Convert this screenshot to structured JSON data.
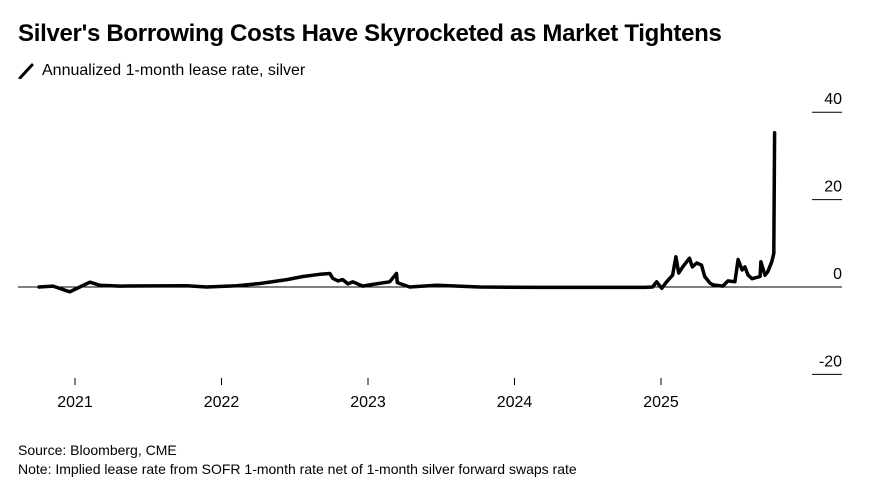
{
  "chart_data": {
    "type": "line",
    "title": "Silver's Borrowing Costs Have Skyrocketed as Market Tightens",
    "series": [
      {
        "name": "Annualized 1-month lease rate, silver",
        "color": "#000000",
        "points": [
          [
            "2020-10-03",
            0.0
          ],
          [
            "2020-11-07",
            0.2
          ],
          [
            "2020-12-19",
            -1.1
          ],
          [
            "2021-01-13",
            0.0
          ],
          [
            "2021-02-07",
            1.1
          ],
          [
            "2021-03-04",
            0.4
          ],
          [
            "2021-04-23",
            0.2
          ],
          [
            "2021-10-06",
            0.3
          ],
          [
            "2021-11-25",
            0.0
          ],
          [
            "2022-02-08",
            0.3
          ],
          [
            "2022-04-07",
            0.8
          ],
          [
            "2022-06-13",
            1.7
          ],
          [
            "2022-07-23",
            2.4
          ],
          [
            "2022-09-03",
            2.9
          ],
          [
            "2022-09-28",
            3.1
          ],
          [
            "2022-10-05",
            2.0
          ],
          [
            "2022-10-18",
            1.4
          ],
          [
            "2022-10-30",
            1.7
          ],
          [
            "2022-11-12",
            0.7
          ],
          [
            "2022-11-24",
            1.2
          ],
          [
            "2022-12-19",
            0.2
          ],
          [
            "2023-01-13",
            0.6
          ],
          [
            "2023-02-24",
            1.2
          ],
          [
            "2023-03-13",
            3.1
          ],
          [
            "2023-03-15",
            1.0
          ],
          [
            "2023-04-15",
            0.0
          ],
          [
            "2023-06-21",
            0.4
          ],
          [
            "2023-10-06",
            0.0
          ],
          [
            "2024-03-04",
            -0.1
          ],
          [
            "2024-08-01",
            -0.1
          ],
          [
            "2024-11-21",
            -0.1
          ],
          [
            "2024-12-11",
            0.0
          ],
          [
            "2024-12-21",
            1.2
          ],
          [
            "2025-01-03",
            -0.3
          ],
          [
            "2025-01-15",
            1.2
          ],
          [
            "2025-01-30",
            2.7
          ],
          [
            "2025-02-07",
            6.9
          ],
          [
            "2025-02-14",
            3.2
          ],
          [
            "2025-02-24",
            4.6
          ],
          [
            "2025-03-13",
            6.6
          ],
          [
            "2025-03-20",
            4.6
          ],
          [
            "2025-03-31",
            5.5
          ],
          [
            "2025-04-12",
            5.0
          ],
          [
            "2025-04-20",
            2.4
          ],
          [
            "2025-05-03",
            0.9
          ],
          [
            "2025-05-10",
            0.5
          ],
          [
            "2025-06-04",
            0.2
          ],
          [
            "2025-06-17",
            1.4
          ],
          [
            "2025-07-04",
            1.2
          ],
          [
            "2025-07-12",
            6.3
          ],
          [
            "2025-07-22",
            3.9
          ],
          [
            "2025-07-29",
            4.6
          ],
          [
            "2025-08-06",
            2.7
          ],
          [
            "2025-08-16",
            1.9
          ],
          [
            "2025-09-05",
            2.4
          ],
          [
            "2025-09-07",
            5.8
          ],
          [
            "2025-09-17",
            2.7
          ],
          [
            "2025-09-24",
            3.5
          ],
          [
            "2025-10-04",
            5.8
          ],
          [
            "2025-10-09",
            7.7
          ],
          [
            "2025-10-11",
            35.3
          ]
        ]
      }
    ],
    "x_ticks": [
      "2021",
      "2022",
      "2023",
      "2024",
      "2025"
    ],
    "y_ticks": [
      "40",
      "20",
      "0",
      "-20"
    ],
    "ylim": [
      -20,
      40
    ],
    "xlim": [
      "2020-09",
      "2025-12"
    ],
    "grid": false,
    "y_axis_side": "right",
    "legend_position": "top-left"
  },
  "footer": {
    "source": "Source: Bloomberg, CME",
    "note": "Note: Implied lease rate from SOFR 1-month rate net of 1-month silver forward swaps rate"
  }
}
